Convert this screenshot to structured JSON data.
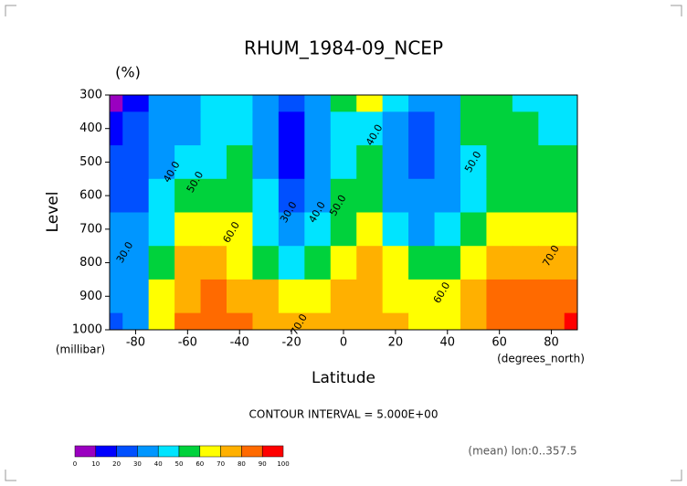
{
  "chart_data": {
    "type": "contour",
    "title": "RHUM_1984-09_NCEP",
    "units": "(%)",
    "y_label": "Level",
    "y_units": "(millibar)",
    "x_label": "Latitude",
    "x_units": "(degrees_north)",
    "contour_interval_text": "CONTOUR INTERVAL = 5.000E+00",
    "footnote": "(mean) lon:0..357.5",
    "x": [
      -90,
      -80,
      -70,
      -60,
      -50,
      -40,
      -30,
      -20,
      -10,
      0,
      10,
      20,
      30,
      40,
      50,
      60,
      70,
      80,
      90
    ],
    "y": [
      300,
      400,
      500,
      600,
      700,
      800,
      900,
      1000
    ],
    "z": [
      [
        8,
        15,
        30,
        35,
        40,
        45,
        38,
        20,
        35,
        50,
        60,
        40,
        32,
        35,
        55,
        55,
        48,
        45,
        40
      ],
      [
        15,
        22,
        32,
        38,
        45,
        48,
        35,
        18,
        30,
        45,
        42,
        32,
        20,
        30,
        50,
        55,
        52,
        48,
        45
      ],
      [
        25,
        25,
        35,
        42,
        48,
        52,
        38,
        15,
        35,
        48,
        55,
        32,
        25,
        33,
        48,
        56,
        55,
        52,
        50
      ],
      [
        28,
        28,
        40,
        52,
        56,
        57,
        42,
        22,
        38,
        52,
        58,
        35,
        30,
        35,
        48,
        57,
        58,
        58,
        55
      ],
      [
        30,
        30,
        45,
        62,
        64,
        62,
        48,
        32,
        45,
        55,
        62,
        45,
        35,
        40,
        55,
        63,
        65,
        65,
        62
      ],
      [
        32,
        32,
        52,
        70,
        72,
        68,
        58,
        45,
        55,
        65,
        70,
        60,
        55,
        55,
        62,
        72,
        74,
        72,
        70
      ],
      [
        30,
        32,
        60,
        78,
        80,
        76,
        70,
        62,
        65,
        72,
        75,
        68,
        65,
        62,
        70,
        80,
        80,
        82,
        82
      ],
      [
        28,
        30,
        65,
        85,
        88,
        82,
        75,
        70,
        72,
        75,
        78,
        70,
        65,
        62,
        75,
        85,
        85,
        88,
        92
      ]
    ],
    "xlim": [
      -90,
      90
    ],
    "ylim": [
      1000,
      300
    ],
    "xticks": [
      -80,
      -60,
      -40,
      -20,
      0,
      20,
      40,
      60,
      80
    ],
    "yticks": [
      300,
      400,
      500,
      600,
      700,
      800,
      900,
      1000
    ],
    "levels": [
      0,
      10,
      20,
      30,
      40,
      50,
      60,
      70,
      80,
      90,
      100
    ],
    "colors": [
      "#9a00c0",
      "#0000ff",
      "#0050ff",
      "#0096ff",
      "#00e4ff",
      "#00d23c",
      "#ffff00",
      "#ffb000",
      "#ff6a00",
      "#ff0000"
    ],
    "contour_labels": [
      {
        "value": 40,
        "label": "40.0",
        "x": -66,
        "y": 530
      },
      {
        "value": 50,
        "label": "50.0",
        "x": -57,
        "y": 560
      },
      {
        "value": 60,
        "label": "60.0",
        "x": -43,
        "y": 710
      },
      {
        "value": 30,
        "label": "30.0",
        "x": -84,
        "y": 770
      },
      {
        "value": 30,
        "label": "30.0",
        "x": -21,
        "y": 650
      },
      {
        "value": 40,
        "label": "40.0",
        "x": -10,
        "y": 650
      },
      {
        "value": 50,
        "label": "50.0",
        "x": -2,
        "y": 630
      },
      {
        "value": 70,
        "label": "70.0",
        "x": -17,
        "y": 985
      },
      {
        "value": 40,
        "label": "40.0",
        "x": 12,
        "y": 420
      },
      {
        "value": 50,
        "label": "50.0",
        "x": 50,
        "y": 500
      },
      {
        "value": 60,
        "label": "60.0",
        "x": 38,
        "y": 890
      },
      {
        "value": 70,
        "label": "70.0",
        "x": 80,
        "y": 780
      }
    ]
  }
}
